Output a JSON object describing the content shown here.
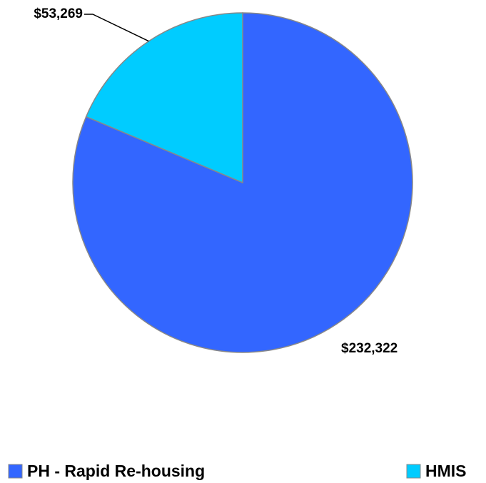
{
  "chart_data": {
    "type": "pie",
    "categories": [
      "PH - Rapid Re-housing",
      "HMIS"
    ],
    "values": [
      232322,
      53269
    ],
    "value_labels": [
      "$232,322",
      "$53,269"
    ],
    "colors": [
      "#3366ff",
      "#00ccff"
    ]
  }
}
